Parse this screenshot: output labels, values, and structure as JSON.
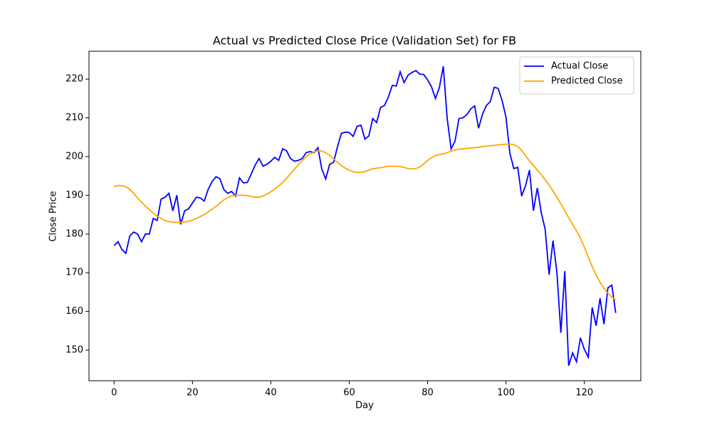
{
  "chart_data": {
    "type": "line",
    "title": "Actual vs Predicted Close Price (Validation Set) for FB",
    "xlabel": "Day",
    "ylabel": "Close Price",
    "x": [
      0,
      1,
      2,
      3,
      4,
      5,
      6,
      7,
      8,
      9,
      10,
      11,
      12,
      13,
      14,
      15,
      16,
      17,
      18,
      19,
      20,
      21,
      22,
      23,
      24,
      25,
      26,
      27,
      28,
      29,
      30,
      31,
      32,
      33,
      34,
      35,
      36,
      37,
      38,
      39,
      40,
      41,
      42,
      43,
      44,
      45,
      46,
      47,
      48,
      49,
      50,
      51,
      52,
      53,
      54,
      55,
      56,
      57,
      58,
      59,
      60,
      61,
      62,
      63,
      64,
      65,
      66,
      67,
      68,
      69,
      70,
      71,
      72,
      73,
      74,
      75,
      76,
      77,
      78,
      79,
      80,
      81,
      82,
      83,
      84,
      85,
      86,
      87,
      88,
      89,
      90,
      91,
      92,
      93,
      94,
      95,
      96,
      97,
      98,
      99,
      100,
      101,
      102,
      103,
      104,
      105,
      106,
      107,
      108,
      109,
      110,
      111,
      112,
      113,
      114,
      115,
      116,
      117,
      118,
      119,
      120,
      121,
      122,
      123,
      124,
      125,
      126,
      127,
      128
    ],
    "series": [
      {
        "name": "Actual Close",
        "color": "#0000ff",
        "values": [
          177,
          178,
          176,
          175,
          179.5,
          180.5,
          180,
          178,
          180,
          180,
          184,
          183.5,
          189,
          189.5,
          190.5,
          186,
          190,
          182.5,
          186,
          186.5,
          188,
          189.5,
          189.3,
          188.5,
          191.5,
          193.5,
          194.8,
          194.3,
          191.5,
          190.5,
          191,
          189.8,
          194.5,
          193.2,
          193.3,
          195.5,
          197.8,
          199.5,
          197.5,
          198,
          198.8,
          199.8,
          199,
          202,
          201.5,
          199.5,
          198.8,
          199,
          199.5,
          201,
          201.3,
          201,
          202.3,
          196.8,
          194.2,
          198,
          198.5,
          202.5,
          206,
          206.3,
          206.2,
          205.2,
          207.8,
          208.1,
          204.5,
          205.3,
          209.8,
          208.8,
          212.7,
          213.2,
          215.4,
          218.4,
          218.2,
          221.9,
          219.1,
          221,
          221.7,
          222.2,
          221.3,
          221.2,
          219.8,
          218,
          215,
          217.8,
          223.3,
          209.8,
          202,
          204,
          209.8,
          210,
          210.8,
          212.3,
          213.1,
          207.3,
          210.9,
          213.2,
          214.2,
          217.9,
          217.6,
          214.5,
          210.2,
          200.8,
          196.9,
          197.2,
          189.8,
          192.5,
          196.5,
          186,
          191.9,
          185.5,
          181.2,
          169.5,
          178.3,
          170,
          154.5,
          170.4,
          146,
          149.3,
          147,
          153.2,
          150.2,
          148.2,
          161,
          156.3,
          163.4,
          156.7,
          166.1,
          166.8,
          159.6
        ]
      },
      {
        "name": "Predicted Close",
        "color": "#ffa500",
        "values": [
          192.2,
          192.5,
          192.5,
          192.2,
          191.5,
          190.5,
          189.3,
          188.2,
          187.2,
          186.3,
          185.4,
          184.6,
          184,
          183.5,
          183.2,
          183.1,
          183,
          183,
          183.1,
          183.3,
          183.6,
          184,
          184.5,
          185,
          185.7,
          186.4,
          187.1,
          188,
          188.8,
          189.4,
          189.8,
          190,
          190,
          190,
          189.9,
          189.7,
          189.5,
          189.5,
          189.8,
          190.3,
          190.9,
          191.6,
          192.4,
          193.3,
          194.4,
          195.5,
          196.7,
          197.9,
          199,
          200,
          200.7,
          201.2,
          201.5,
          201.4,
          201,
          200.3,
          199.4,
          198.5,
          197.7,
          197,
          196.5,
          196.1,
          195.9,
          195.9,
          196.1,
          196.5,
          196.8,
          197,
          197.1,
          197.3,
          197.5,
          197.5,
          197.5,
          197.4,
          197.2,
          196.9,
          196.8,
          196.9,
          197.3,
          198.1,
          199,
          199.7,
          200.2,
          200.5,
          200.7,
          201,
          201.4,
          201.7,
          201.9,
          202,
          202.1,
          202.2,
          202.3,
          202.4,
          202.6,
          202.7,
          202.8,
          202.9,
          203,
          203.1,
          203.2,
          203.2,
          203.1,
          202.6,
          201.6,
          200.2,
          198.9,
          197.7,
          196.5,
          195.3,
          194,
          192.6,
          191.1,
          189.5,
          187.8,
          186,
          184.2,
          182.5,
          180.8,
          178.9,
          176.6,
          174,
          171.6,
          169.4,
          167.5,
          166,
          164.7,
          163.7,
          163
        ]
      }
    ],
    "xlim": [
      -6.4,
      134.4
    ],
    "ylim": [
      142.1,
      227.2
    ],
    "xticks": [
      0,
      20,
      40,
      60,
      80,
      100,
      120
    ],
    "yticks": [
      150,
      160,
      170,
      180,
      190,
      200,
      210,
      220
    ],
    "legend": "upper right"
  }
}
